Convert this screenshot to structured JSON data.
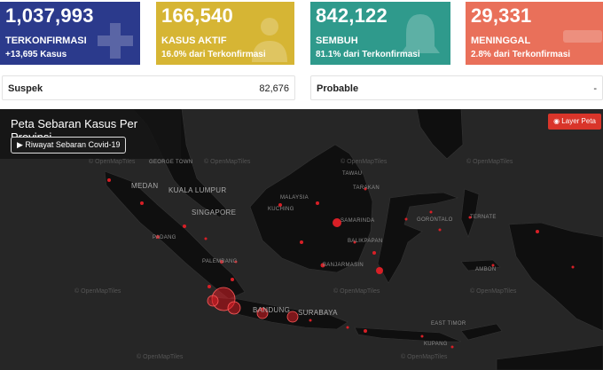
{
  "cards": {
    "confirmed": {
      "value": "1,037,993",
      "label": "TERKONFIRMASI",
      "sub": "+13,695 Kasus",
      "color": "#2b3a8c"
    },
    "active": {
      "value": "166,540",
      "label": "KASUS AKTIF",
      "sub": "16.0% dari Terkonfirmasi",
      "color": "#d6b534"
    },
    "recovered": {
      "value": "842,122",
      "label": "SEMBUH",
      "sub": "81.1% dari Terkonfirmasi",
      "color": "#2f9a8c"
    },
    "deaths": {
      "value": "29,331",
      "label": "MENINGGAL",
      "sub": "2.8% dari Terkonfirmasi",
      "color": "#e9705a"
    }
  },
  "stats": {
    "suspek": {
      "label": "Suspek",
      "value": "82,676"
    },
    "probable": {
      "label": "Probable",
      "value": "-"
    }
  },
  "map": {
    "title": "Peta Sebaran Kasus Per Provinsi",
    "history_button": "▶ Riwayat Sebaran Covid-19",
    "layer_button": "Layer Peta",
    "attribution": "© OpenMapTiles",
    "cities": {
      "george_town": "GEORGE TOWN",
      "medan": "MEDAN",
      "kuala_lumpur": "KUALA LUMPUR",
      "singapore": "SINGAPORE",
      "padang": "PADANG",
      "palembang": "PALEMBANG",
      "bandung": "BANDUNG",
      "surabaya": "SURABAYA",
      "malaysia": "MALAYSIA",
      "kuching": "KUCHING",
      "tawau": "TAWAU",
      "tarakan": "TARAKAN",
      "samarinda": "SAMARINDA",
      "balikpapan": "BALIKPAPAN",
      "banjarmasin": "BANJARMASIN",
      "gorontalo": "GORONTALO",
      "ternate": "TERNATE",
      "ambon": "AMBON",
      "kupang": "KUPANG",
      "east_timor": "EAST TIMOR"
    }
  }
}
